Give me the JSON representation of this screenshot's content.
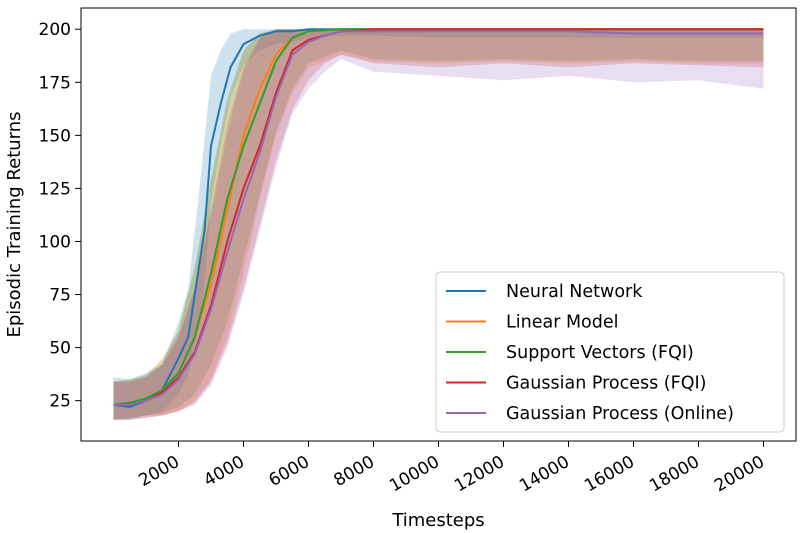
{
  "chart_data": {
    "type": "line",
    "title": "",
    "xlabel": "Timesteps",
    "ylabel": "Episodic Training Returns",
    "xlim": [
      -1000,
      21000
    ],
    "ylim": [
      6,
      210
    ],
    "xticks": [
      2000,
      4000,
      6000,
      8000,
      10000,
      12000,
      14000,
      16000,
      18000,
      20000
    ],
    "xtick_labels": [
      "2000",
      "4000",
      "6000",
      "8000",
      "10000",
      "12000",
      "14000",
      "16000",
      "18000",
      "20000"
    ],
    "yticks": [
      25,
      50,
      75,
      100,
      125,
      150,
      175,
      200
    ],
    "ytick_labels": [
      "25",
      "50",
      "75",
      "100",
      "125",
      "150",
      "175",
      "200"
    ],
    "grid": false,
    "legend_position": "lower-right",
    "shaded_band": "variability band around each series mean",
    "series": [
      {
        "name": "Neural Network",
        "color": "#1f77b4",
        "x": [
          0,
          500,
          1000,
          1500,
          2000,
          2300,
          2600,
          2800,
          3000,
          3300,
          3600,
          4000,
          4500,
          5000,
          5500,
          6000,
          7000,
          8000,
          10000,
          12000,
          14000,
          16000,
          18000,
          20000
        ],
        "y": [
          23,
          22,
          25,
          30,
          45,
          55,
          85,
          105,
          145,
          165,
          182,
          193,
          197,
          199,
          199,
          200,
          200,
          200,
          200,
          200,
          200,
          200,
          200,
          200
        ],
        "band_low": [
          16,
          16,
          18,
          20,
          28,
          38,
          60,
          80,
          118,
          145,
          168,
          183,
          190,
          193,
          194,
          196,
          197,
          197,
          196,
          196,
          196,
          196,
          196,
          196
        ],
        "band_high": [
          36,
          35,
          38,
          42,
          62,
          78,
          118,
          148,
          178,
          190,
          198,
          200,
          200,
          200,
          200,
          200,
          200,
          200,
          200,
          200,
          200,
          200,
          200,
          200
        ]
      },
      {
        "name": "Linear Model",
        "color": "#ff7f0e",
        "x": [
          0,
          500,
          1000,
          1500,
          2000,
          2500,
          3000,
          3500,
          4000,
          4500,
          5000,
          5500,
          6000,
          7000,
          8000,
          10000,
          12000,
          14000,
          16000,
          18000,
          20000
        ],
        "y": [
          23,
          24,
          26,
          30,
          38,
          55,
          80,
          115,
          150,
          172,
          188,
          196,
          199,
          200,
          200,
          200,
          200,
          200,
          200,
          200,
          200
        ],
        "band_low": [
          16,
          17,
          18,
          18,
          20,
          25,
          35,
          55,
          85,
          120,
          150,
          170,
          182,
          188,
          185,
          184,
          185,
          184,
          185,
          184,
          184
        ],
        "band_high": [
          34,
          35,
          37,
          45,
          58,
          88,
          128,
          165,
          190,
          198,
          200,
          200,
          200,
          200,
          200,
          200,
          200,
          200,
          200,
          200,
          200
        ]
      },
      {
        "name": "Support Vectors (FQI)",
        "color": "#2ca02c",
        "x": [
          0,
          500,
          1000,
          1500,
          2000,
          2500,
          3000,
          3500,
          4000,
          4500,
          5000,
          5500,
          6000,
          7000,
          8000,
          10000,
          12000,
          14000,
          16000,
          18000,
          20000
        ],
        "y": [
          23,
          24,
          26,
          30,
          38,
          55,
          85,
          120,
          145,
          165,
          185,
          196,
          199,
          200,
          200,
          200,
          200,
          200,
          200,
          200,
          200
        ],
        "band_low": [
          16,
          17,
          18,
          19,
          22,
          28,
          42,
          62,
          92,
          122,
          152,
          172,
          184,
          190,
          186,
          185,
          186,
          185,
          186,
          185,
          185
        ],
        "band_high": [
          34,
          35,
          37,
          44,
          58,
          88,
          130,
          168,
          190,
          198,
          200,
          200,
          200,
          200,
          200,
          200,
          200,
          200,
          200,
          200,
          200
        ]
      },
      {
        "name": "Gaussian Process (FQI)",
        "color": "#d62728",
        "x": [
          0,
          500,
          1000,
          1500,
          2000,
          2500,
          3000,
          3500,
          4000,
          4500,
          5000,
          5500,
          6000,
          6500,
          7000,
          8000,
          10000,
          12000,
          14000,
          16000,
          18000,
          20000
        ],
        "y": [
          23,
          23,
          25,
          29,
          36,
          48,
          70,
          100,
          125,
          145,
          170,
          190,
          195,
          197,
          199,
          200,
          200,
          200,
          200,
          200,
          200,
          200
        ],
        "band_low": [
          16,
          16,
          17,
          18,
          20,
          24,
          34,
          52,
          78,
          108,
          138,
          162,
          176,
          184,
          188,
          184,
          182,
          184,
          182,
          184,
          183,
          182
        ],
        "band_high": [
          34,
          34,
          36,
          42,
          55,
          78,
          115,
          155,
          182,
          196,
          200,
          200,
          200,
          200,
          200,
          200,
          200,
          200,
          200,
          200,
          200,
          200
        ]
      },
      {
        "name": "Gaussian Process (Online)",
        "color": "#9467bd",
        "x": [
          0,
          500,
          1000,
          1500,
          2000,
          2500,
          3000,
          3500,
          4000,
          4500,
          5000,
          5500,
          6000,
          6500,
          7000,
          8000,
          10000,
          12000,
          14000,
          16000,
          18000,
          20000
        ],
        "y": [
          23,
          23,
          25,
          28,
          35,
          47,
          68,
          95,
          120,
          142,
          168,
          188,
          194,
          197,
          199,
          199,
          199,
          199,
          199,
          198,
          198,
          198
        ],
        "band_low": [
          16,
          16,
          17,
          18,
          20,
          23,
          32,
          50,
          75,
          105,
          135,
          160,
          172,
          180,
          186,
          180,
          178,
          176,
          178,
          175,
          176,
          172
        ],
        "band_high": [
          34,
          34,
          36,
          42,
          55,
          76,
          112,
          150,
          180,
          195,
          200,
          200,
          200,
          200,
          200,
          200,
          200,
          200,
          200,
          200,
          200,
          200
        ]
      }
    ]
  }
}
